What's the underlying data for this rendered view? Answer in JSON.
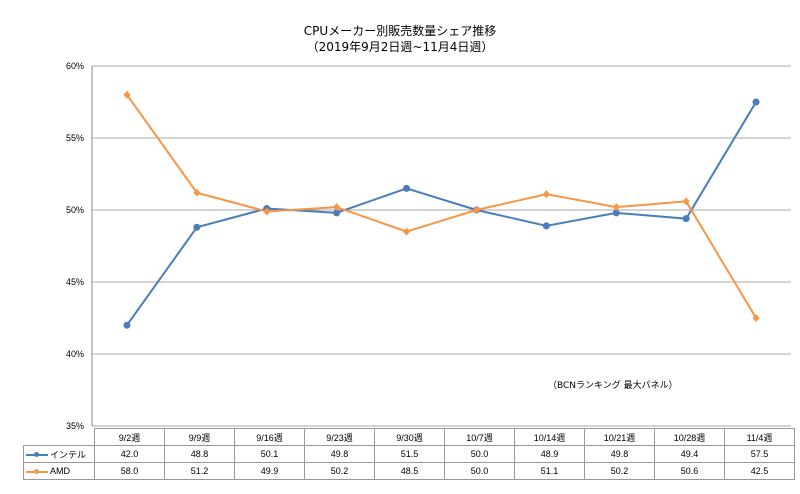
{
  "chart_data": {
    "type": "line",
    "title": "CPUメーカー別販売数量シェア推移",
    "subtitle": "（2019年9月2日週~11月4日週）",
    "categories": [
      "9/2週",
      "9/9週",
      "9/16週",
      "9/23週",
      "9/30週",
      "10/7週",
      "10/14週",
      "10/21週",
      "10/28週",
      "11/4週"
    ],
    "series": [
      {
        "name": "インテル",
        "color": "#4a7ebb",
        "marker": "circle",
        "values": [
          42.0,
          48.8,
          50.1,
          49.8,
          51.5,
          50.0,
          48.9,
          49.8,
          49.4,
          57.5
        ]
      },
      {
        "name": "AMD",
        "color": "#f79646",
        "marker": "diamond",
        "values": [
          58.0,
          51.2,
          49.9,
          50.2,
          48.5,
          50.0,
          51.1,
          50.2,
          50.6,
          42.5
        ]
      }
    ],
    "yticks": [
      "35%",
      "40%",
      "45%",
      "50%",
      "55%",
      "60%"
    ],
    "ylim": [
      35,
      60
    ],
    "grid": true,
    "legend": "data-table",
    "annotation": "（BCNランキング 最大パネル）"
  }
}
